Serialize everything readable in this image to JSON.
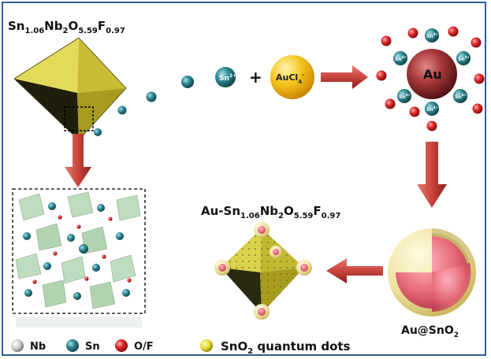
{
  "formula_top": {
    "base": [
      "Sn",
      "Nb",
      "O",
      "F"
    ],
    "subs": [
      "1.06",
      "2",
      "5.59",
      "0.97"
    ]
  },
  "formula_mid": {
    "prefix": "Au-",
    "base": [
      "Sn",
      "Nb",
      "O",
      "F"
    ],
    "subs": [
      "1.06",
      "2",
      "5.59",
      "0.97"
    ]
  },
  "ion_sn": {
    "base": "Sn",
    "sup": "2+"
  },
  "plus": "+",
  "aucl": {
    "base": "AuCl",
    "sub": "4",
    "sup": "-"
  },
  "au_core": "Au",
  "sn4_label": {
    "base": "Sn",
    "sup": "4+"
  },
  "core_shell": {
    "base": "Au@SnO",
    "sub": "2"
  },
  "legend": {
    "nb": "Nb",
    "sn": "Sn",
    "of": "O/F",
    "qd": {
      "pre": "SnO",
      "sub": "2",
      "post": " quantum dots"
    }
  },
  "colors": {
    "octahedron_yellow": "#d9d04a",
    "arrow_red": "#c9443d",
    "sn_teal": "#2f7f88",
    "oxygen_red": "#e02a2a",
    "au_core": "#a83a3a",
    "auCl_gold": "#f4b41b",
    "shell_yellow": "#efe8a8",
    "core_pink": "#e66a7a"
  }
}
